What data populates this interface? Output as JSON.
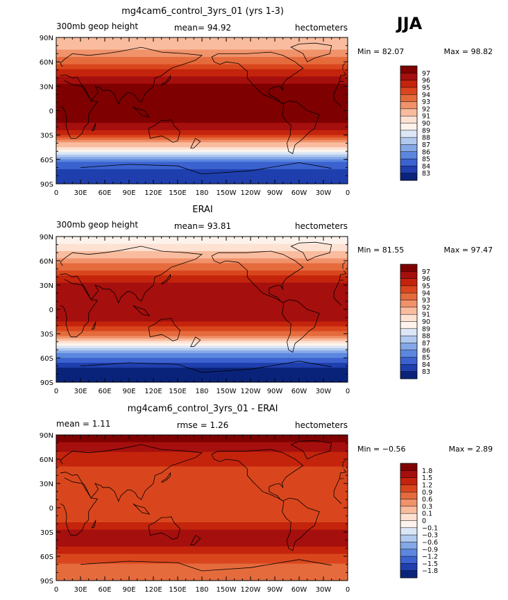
{
  "season": "JJA",
  "chart_data": [
    {
      "type": "heatmap",
      "title": "mg4cam6_control_3yrs_01 (yrs 1-3)",
      "left_label": "300mb geop height",
      "center_label": "mean=   94.92",
      "right_label": "hectometers",
      "min_label": "Min =  82.07",
      "max_label": "Max =  98.82",
      "min": 82.07,
      "max": 98.82,
      "mean": 94.92,
      "lat_labels": [
        "90N",
        "60N",
        "30N",
        "0",
        "30S",
        "60S",
        "90S"
      ],
      "lon_labels": [
        "0",
        "30E",
        "60E",
        "90E",
        "120E",
        "150E",
        "180",
        "150W",
        "120W",
        "90W",
        "60W",
        "30W",
        "0"
      ],
      "levels": [
        "97",
        "96",
        "95",
        "94",
        "93",
        "92",
        "91",
        "90",
        "89",
        "88",
        "87",
        "86",
        "85",
        "84",
        "83"
      ],
      "colors": [
        "#7f0000",
        "#a50f0d",
        "#c4240c",
        "#d9461d",
        "#e56b3d",
        "#f0926a",
        "#f9bc9e",
        "#fde2d3",
        "#fdf3ec",
        "#dbe6f6",
        "#b2c9ee",
        "#84a7e6",
        "#5b87df",
        "#3b62cf",
        "#1f3fae",
        "#0a237a"
      ],
      "zonal_profile": {
        "lat": [
          90,
          75,
          60,
          45,
          30,
          15,
          0,
          -15,
          -30,
          -45,
          -60,
          -75,
          -90
        ],
        "value": [
          91.3,
          92.0,
          93.6,
          95.7,
          97.3,
          97.6,
          97.5,
          97.1,
          95.2,
          90.6,
          85.6,
          83.4,
          83.2
        ]
      }
    },
    {
      "type": "heatmap",
      "title": "ERAI",
      "left_label": "300mb geop height",
      "center_label": "mean=   93.81",
      "right_label": "hectometers",
      "min_label": "Min =  81.55",
      "max_label": "Max =  97.47",
      "min": 81.55,
      "max": 97.47,
      "mean": 93.81,
      "lat_labels": [
        "90N",
        "60N",
        "30N",
        "0",
        "30S",
        "60S",
        "90S"
      ],
      "lon_labels": [
        "0",
        "30E",
        "60E",
        "90E",
        "120E",
        "150E",
        "180",
        "150W",
        "120W",
        "90W",
        "60W",
        "30W",
        "0"
      ],
      "levels": [
        "97",
        "96",
        "95",
        "94",
        "93",
        "92",
        "91",
        "90",
        "89",
        "88",
        "87",
        "86",
        "85",
        "84",
        "83"
      ],
      "colors": [
        "#7f0000",
        "#a50f0d",
        "#c4240c",
        "#d9461d",
        "#e56b3d",
        "#f0926a",
        "#f9bc9e",
        "#fde2d3",
        "#fdf3ec",
        "#dbe6f6",
        "#b2c9ee",
        "#84a7e6",
        "#5b87df",
        "#3b62cf",
        "#1f3fae",
        "#0a237a"
      ],
      "zonal_profile": {
        "lat": [
          90,
          75,
          60,
          45,
          30,
          15,
          0,
          -15,
          -30,
          -45,
          -60,
          -75,
          -90
        ],
        "value": [
          89.3,
          90.4,
          92.4,
          94.6,
          96.3,
          96.7,
          96.6,
          96.0,
          93.6,
          88.9,
          84.6,
          82.6,
          82.3
        ]
      }
    },
    {
      "type": "heatmap",
      "title": "mg4cam6_control_3yrs_01 - ERAI",
      "left_label": "mean =     1.11",
      "center_label": "rmse =     1.26",
      "right_label": "hectometers",
      "min_label": "Min =  −0.56",
      "max_label": "Max =    2.89",
      "min": -0.56,
      "max": 2.89,
      "mean": 1.11,
      "rmse": 1.26,
      "lat_labels": [
        "90N",
        "60N",
        "30N",
        "0",
        "30S",
        "60S",
        "90S"
      ],
      "lon_labels": [
        "0",
        "30E",
        "60E",
        "90E",
        "120E",
        "150E",
        "180",
        "150W",
        "120W",
        "90W",
        "60W",
        "30W",
        "0"
      ],
      "levels": [
        "1.8",
        "1.5",
        "1.2",
        "0.9",
        "0.6",
        "0.3",
        "0.1",
        "0",
        "−0.1",
        "−0.3",
        "−0.6",
        "−0.9",
        "−1.2",
        "−1.5",
        "−1.8"
      ],
      "colors": [
        "#7f0000",
        "#a50f0d",
        "#c4240c",
        "#d9461d",
        "#e56b3d",
        "#f0926a",
        "#f9bc9e",
        "#fde2d3",
        "#fdf3ec",
        "#dbe6f6",
        "#b2c9ee",
        "#84a7e6",
        "#5b87df",
        "#3b62cf",
        "#1f3fae",
        "#0a237a"
      ],
      "zonal_profile": {
        "lat": [
          90,
          75,
          60,
          45,
          30,
          15,
          0,
          -15,
          -30,
          -45,
          -60,
          -75,
          -90
        ],
        "value": [
          2.0,
          1.6,
          1.3,
          1.1,
          1.0,
          0.9,
          0.9,
          1.1,
          1.6,
          1.7,
          1.0,
          0.8,
          0.9
        ]
      }
    }
  ]
}
